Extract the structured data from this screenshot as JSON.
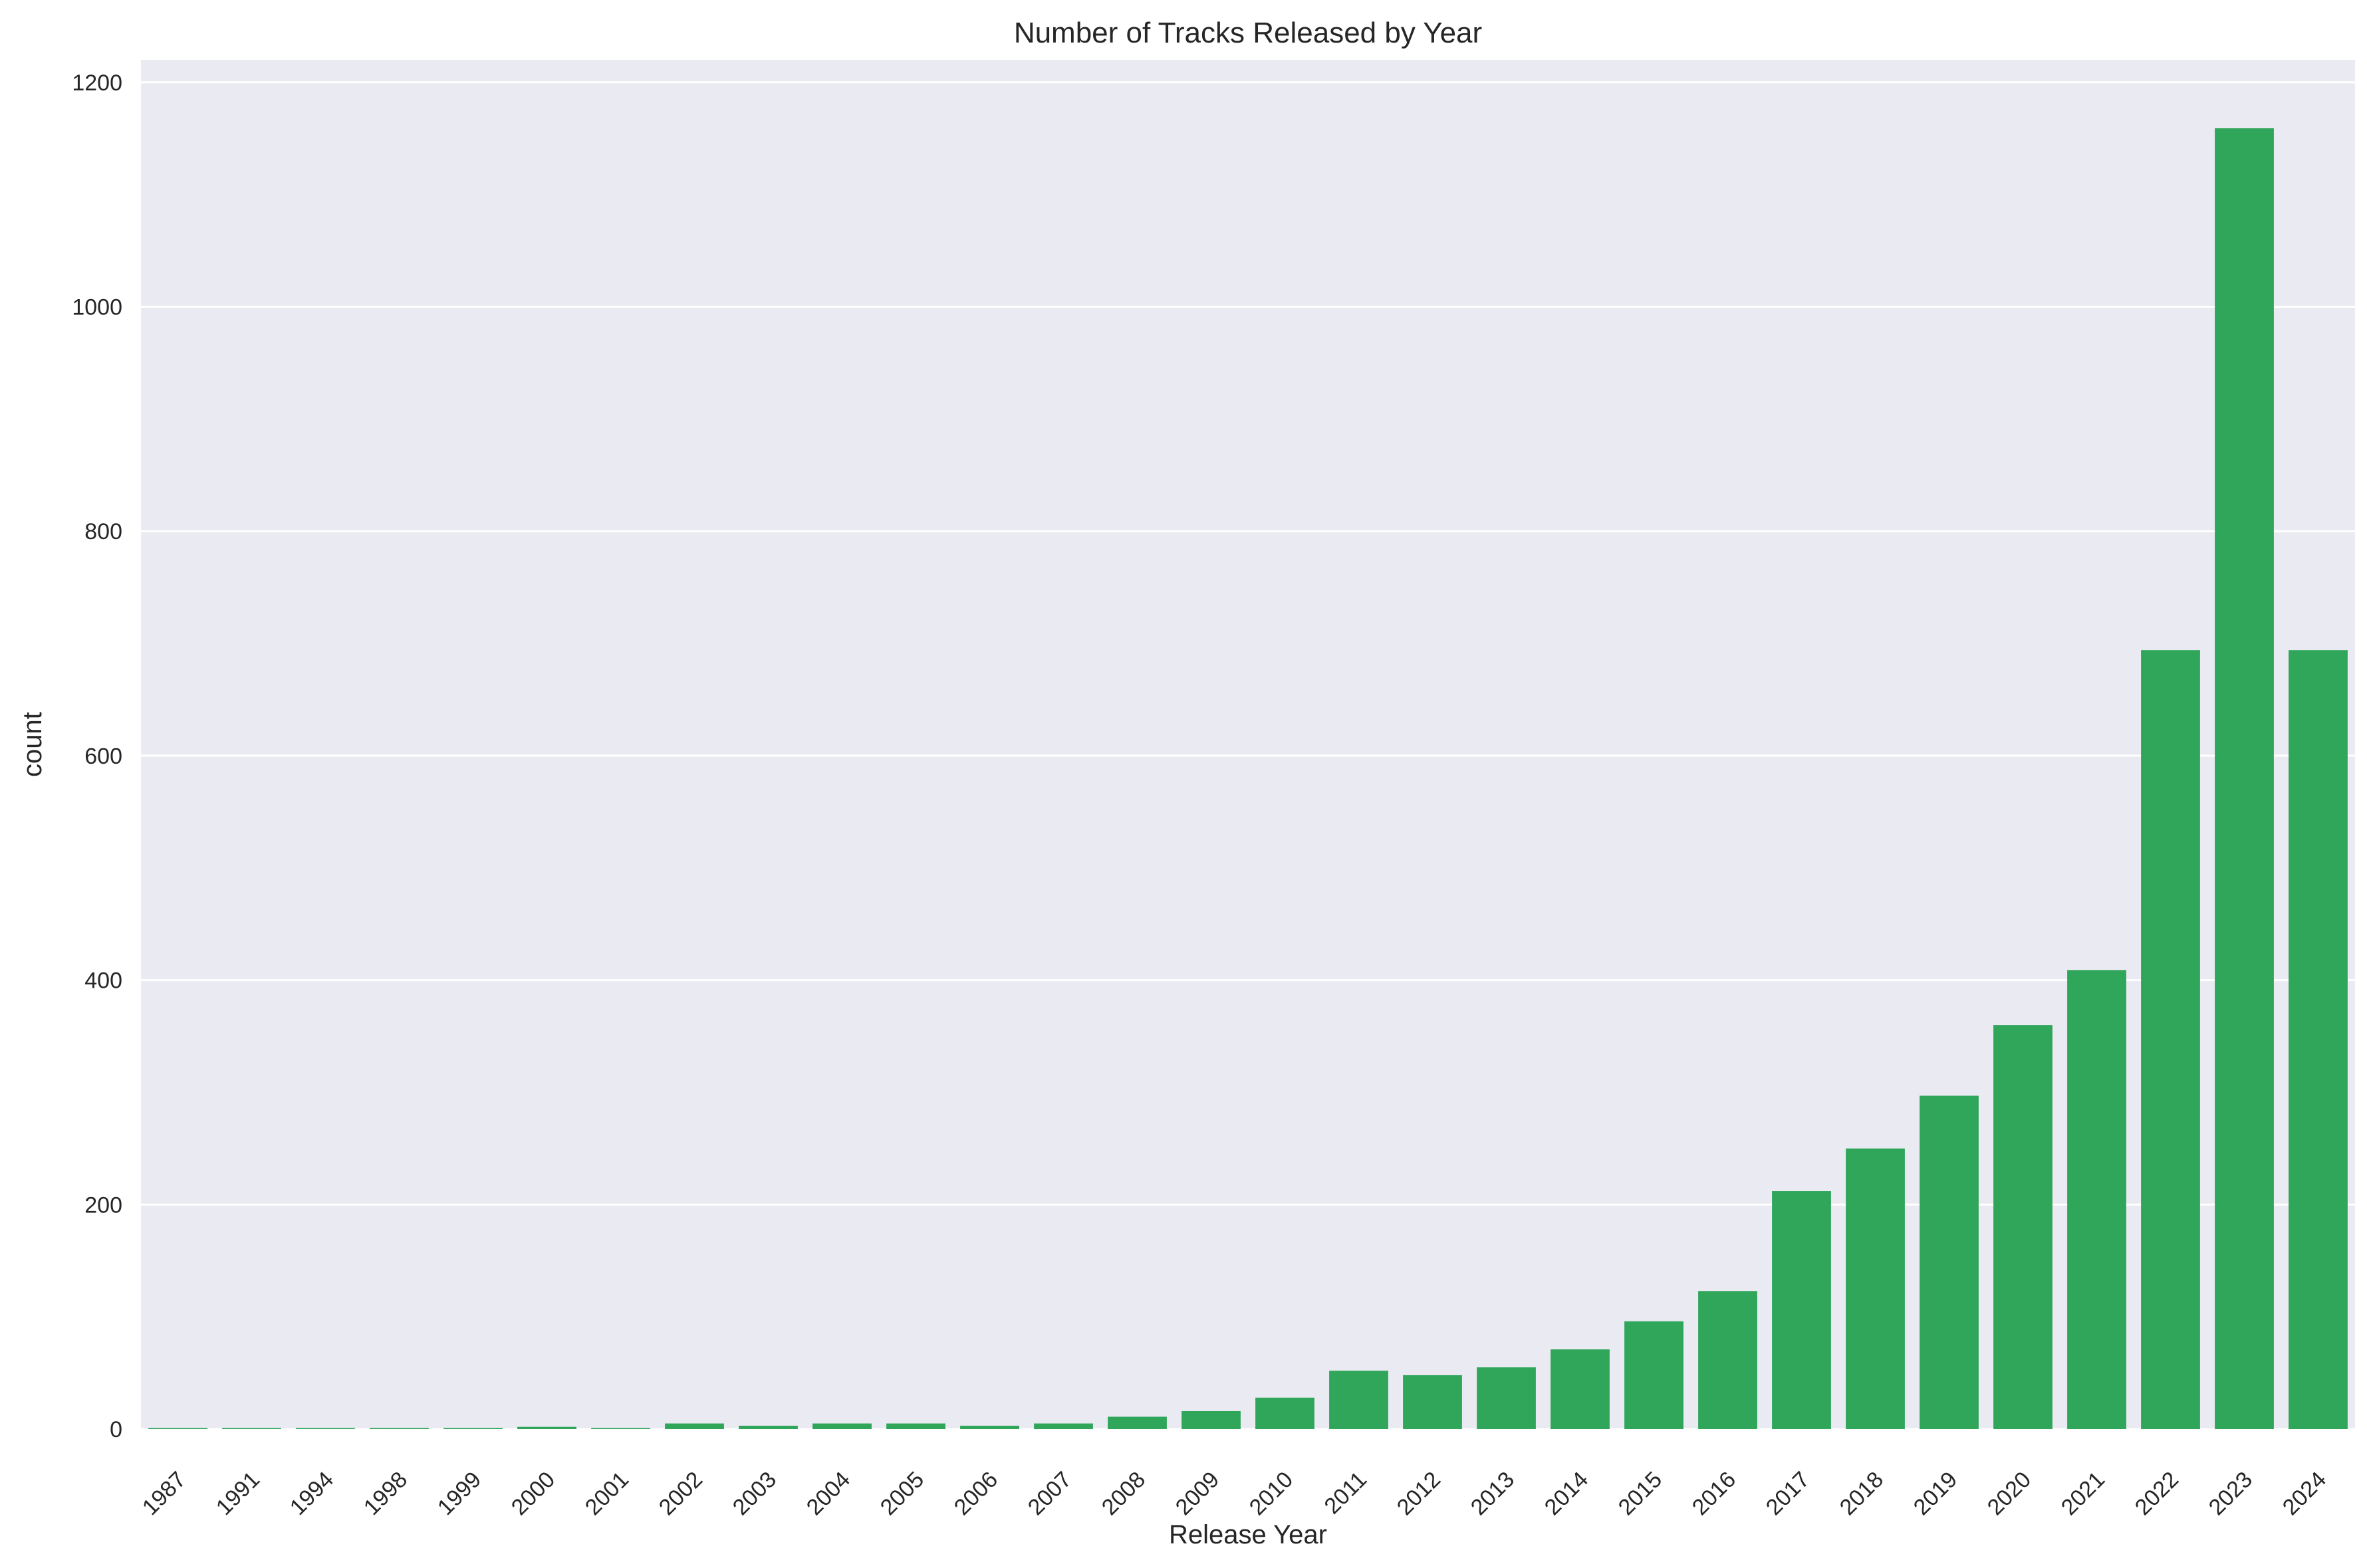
{
  "chart_data": {
    "type": "bar",
    "title": "Number of Tracks Released by Year",
    "xlabel": "Release Year",
    "ylabel": "count",
    "ylim": [
      0,
      1220
    ],
    "yticks": [
      0,
      200,
      400,
      600,
      800,
      1000,
      1200
    ],
    "categories": [
      "1987",
      "1991",
      "1994",
      "1998",
      "1999",
      "2000",
      "2001",
      "2002",
      "2003",
      "2004",
      "2005",
      "2006",
      "2007",
      "2008",
      "2009",
      "2010",
      "2011",
      "2012",
      "2013",
      "2014",
      "2015",
      "2016",
      "2017",
      "2018",
      "2019",
      "2020",
      "2021",
      "2022",
      "2023",
      "2024"
    ],
    "values": [
      1,
      1,
      1,
      1,
      1,
      2,
      1,
      5,
      3,
      5,
      5,
      3,
      5,
      11,
      16,
      28,
      52,
      48,
      55,
      71,
      96,
      123,
      212,
      250,
      297,
      360,
      409,
      694,
      1159,
      694
    ],
    "grid": true,
    "bar_color": "#30a65a",
    "background_color": "#eaeaf2"
  }
}
